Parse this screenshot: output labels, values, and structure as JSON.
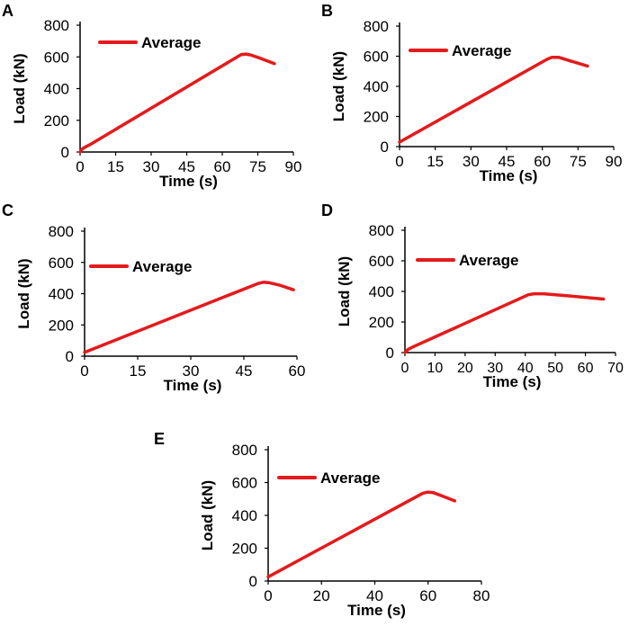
{
  "colors": {
    "series": "#e41a1c",
    "axis": "#000000",
    "text": "#000000"
  },
  "chart_data": [
    {
      "panel_label": "A",
      "type": "line",
      "xlabel": "Time (s)",
      "ylabel": "Load (kN)",
      "xlim": [
        0,
        90
      ],
      "ylim": [
        0,
        800
      ],
      "xticks": [
        0,
        15,
        30,
        45,
        60,
        75,
        90
      ],
      "yticks": [
        0,
        200,
        400,
        600,
        800
      ],
      "legend": [
        "Average"
      ],
      "series": [
        {
          "name": "Average",
          "x": [
            0,
            1,
            2,
            4,
            68,
            70,
            72,
            76,
            82
          ],
          "y": [
            0,
            20,
            30,
            45,
            615,
            618,
            612,
            592,
            558
          ]
        }
      ]
    },
    {
      "panel_label": "B",
      "type": "line",
      "xlabel": "Time (s)",
      "ylabel": "Load (kN)",
      "xlim": [
        0,
        90
      ],
      "ylim": [
        0,
        800
      ],
      "xticks": [
        0,
        15,
        30,
        45,
        60,
        75,
        90
      ],
      "yticks": [
        0,
        200,
        400,
        600,
        800
      ],
      "legend": [
        "Average"
      ],
      "series": [
        {
          "name": "Average",
          "x": [
            0,
            62,
            64,
            67,
            72,
            79
          ],
          "y": [
            30,
            580,
            592,
            592,
            568,
            535
          ]
        }
      ]
    },
    {
      "panel_label": "C",
      "type": "line",
      "xlabel": "Time (s)",
      "ylabel": "Load (kN)",
      "xlim": [
        0,
        60
      ],
      "ylim": [
        0,
        800
      ],
      "xticks": [
        0,
        15,
        30,
        45,
        60
      ],
      "yticks": [
        0,
        200,
        400,
        600,
        800
      ],
      "legend": [
        "Average"
      ],
      "series": [
        {
          "name": "Average",
          "x": [
            0,
            49,
            50.5,
            52,
            55,
            59
          ],
          "y": [
            25,
            465,
            473,
            471,
            455,
            425
          ]
        }
      ]
    },
    {
      "panel_label": "D",
      "type": "line",
      "xlabel": "Time (s)",
      "ylabel": "Load (kN)",
      "xlim": [
        0,
        70
      ],
      "ylim": [
        0,
        800
      ],
      "xticks": [
        0,
        10,
        20,
        30,
        40,
        50,
        60,
        70
      ],
      "yticks": [
        0,
        200,
        400,
        600,
        800
      ],
      "legend": [
        "Average"
      ],
      "series": [
        {
          "name": "Average",
          "x": [
            0,
            1,
            3,
            41,
            43,
            46,
            55,
            66
          ],
          "y": [
            0,
            20,
            40,
            378,
            385,
            385,
            370,
            350
          ]
        }
      ]
    },
    {
      "panel_label": "E",
      "type": "line",
      "xlabel": "Time (s)",
      "ylabel": "Load (kN)",
      "xlim": [
        0,
        80
      ],
      "ylim": [
        0,
        800
      ],
      "xticks": [
        0,
        20,
        40,
        60,
        80
      ],
      "yticks": [
        0,
        200,
        400,
        600,
        800
      ],
      "legend": [
        "Average"
      ],
      "series": [
        {
          "name": "Average",
          "x": [
            0,
            58,
            60,
            62,
            65,
            70
          ],
          "y": [
            25,
            535,
            542,
            538,
            520,
            488
          ]
        }
      ]
    }
  ]
}
